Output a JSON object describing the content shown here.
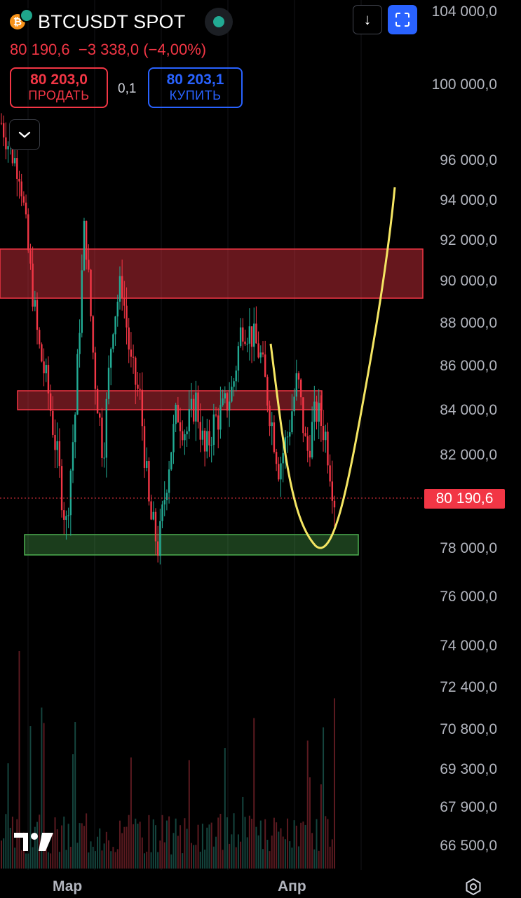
{
  "header": {
    "coin_glyph": "₿",
    "symbol": "BTCUSDT SPOT",
    "last_price": "80 190,6",
    "change_abs": "−3 338,0",
    "change_pct": "(−4,00%)"
  },
  "trade": {
    "sell_price": "80 203,0",
    "sell_label": "ПРОДАТЬ",
    "spread": "0,1",
    "buy_price": "80 203,1",
    "buy_label": "КУПИТЬ"
  },
  "toolbar": {
    "collapse_icon": "chevron-down-icon",
    "download_icon": "arrow-down-icon",
    "fullscreen_icon": "fullscreen-icon",
    "collapse_glyph": "⌄",
    "download_glyph": "↓"
  },
  "price_axis": {
    "labels": [
      "104 000,0",
      "100 000,0",
      "96 000,0",
      "94 000,0",
      "92 000,0",
      "90 000,0",
      "88 000,0",
      "86 000,0",
      "84 000,0",
      "82 000,0",
      "78 000,0",
      "76 000,0",
      "74 000,0",
      "72 400,0",
      "70 800,0",
      "69 300,0",
      "67 900,0",
      "66 500,0"
    ],
    "current": "80 190,6"
  },
  "time_axis": {
    "labels": [
      "Мар",
      "Апр"
    ]
  },
  "colors": {
    "up": "#22ab94",
    "down": "#f23645",
    "resistance_zone": "#f23645",
    "support_zone": "#4caf50",
    "projection": "#f5e663",
    "accent": "#2962ff"
  },
  "chart_data": {
    "type": "candlestick",
    "symbol": "BTCUSDT",
    "y_unit": "USDT",
    "ylim": [
      74000,
      104000
    ],
    "x_ticks": [
      "Мар",
      "Апр"
    ],
    "last_price": 80190.6,
    "approx_close_path": [
      98000,
      96500,
      95500,
      91000,
      87000,
      85000,
      82000,
      79000,
      84000,
      93000,
      86000,
      82000,
      88000,
      90000,
      86000,
      84500,
      79500,
      78000,
      81500,
      84000,
      83000,
      84500,
      82000,
      83500,
      84000,
      85000,
      88000,
      87500,
      86500,
      84000,
      81500,
      83000,
      85500,
      82000,
      84000,
      83000,
      80190.6
    ],
    "zones": [
      {
        "type": "resistance",
        "from": 89300,
        "to": 91600
      },
      {
        "type": "resistance",
        "from": 84000,
        "to": 84900
      },
      {
        "type": "support",
        "from": 77800,
        "to": 78700
      }
    ],
    "projection": "U-shaped path dipping to about 78 200 then rising above 94 000"
  }
}
